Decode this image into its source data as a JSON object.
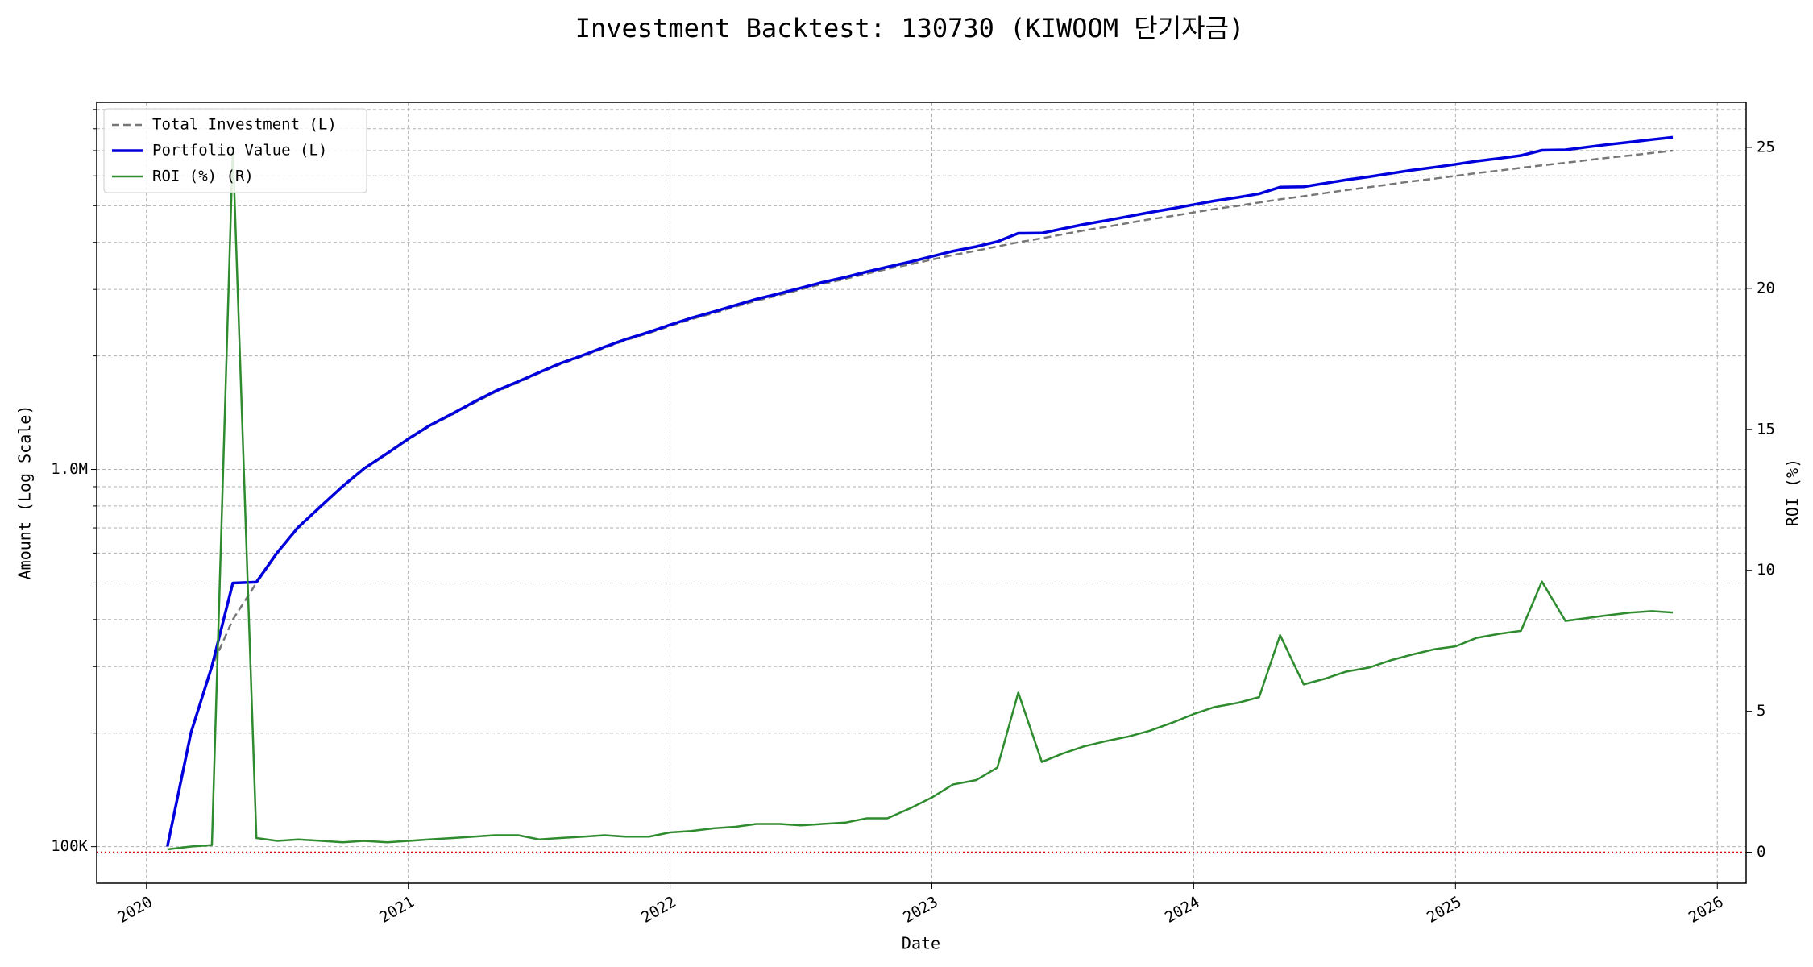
{
  "chart_data": {
    "type": "line",
    "title": "Investment Backtest: 130730 (KIWOOM 단기자금)",
    "xlabel": "Date",
    "ylabel": "Amount (Log Scale)",
    "y2label": "ROI (%)",
    "x": [
      2020.08,
      2020.17,
      2020.25,
      2020.33,
      2020.42,
      2020.5,
      2020.58,
      2020.67,
      2020.75,
      2020.83,
      2020.92,
      2021.0,
      2021.08,
      2021.17,
      2021.25,
      2021.33,
      2021.42,
      2021.5,
      2021.58,
      2021.67,
      2021.75,
      2021.83,
      2021.92,
      2022.0,
      2022.08,
      2022.17,
      2022.25,
      2022.33,
      2022.42,
      2022.5,
      2022.58,
      2022.67,
      2022.75,
      2022.83,
      2022.92,
      2023.0,
      2023.08,
      2023.17,
      2023.25,
      2023.33,
      2023.42,
      2023.5,
      2023.58,
      2023.67,
      2023.75,
      2023.83,
      2023.92,
      2024.0,
      2024.08,
      2024.17,
      2024.25,
      2024.33,
      2024.42,
      2024.5,
      2024.58,
      2024.67,
      2024.75,
      2024.83,
      2024.92,
      2025.0,
      2025.08,
      2025.17,
      2025.25,
      2025.33,
      2025.42,
      2025.5,
      2025.58,
      2025.67,
      2025.75,
      2025.83
    ],
    "series": [
      {
        "name": "Total Investment (L)",
        "color": "#777777",
        "dash": true,
        "axis": "y",
        "values": [
          100000,
          200000,
          300000,
          400000,
          500000,
          600000,
          700000,
          800000,
          900000,
          1000000,
          1100000,
          1200000,
          1300000,
          1400000,
          1500000,
          1600000,
          1700000,
          1800000,
          1900000,
          2000000,
          2100000,
          2200000,
          2300000,
          2400000,
          2500000,
          2600000,
          2700000,
          2800000,
          2900000,
          3000000,
          3100000,
          3200000,
          3300000,
          3400000,
          3500000,
          3600000,
          3700000,
          3800000,
          3900000,
          4000000,
          4100000,
          4200000,
          4300000,
          4400000,
          4500000,
          4600000,
          4700000,
          4800000,
          4900000,
          5000000,
          5100000,
          5200000,
          5300000,
          5400000,
          5500000,
          5600000,
          5700000,
          5800000,
          5900000,
          6000000,
          6100000,
          6200000,
          6300000,
          6400000,
          6500000,
          6600000,
          6700000,
          6800000,
          6900000,
          7000000
        ]
      },
      {
        "name": "Portfolio Value (L)",
        "color": "#0000dd",
        "dash": false,
        "axis": "y",
        "values": [
          100100,
          200400,
          300750,
          500000,
          502500,
          602400,
          703150,
          803200,
          903150,
          1004000,
          1103850,
          1204800,
          1305850,
          1407000,
          1508250,
          1609600,
          1710200,
          1808100,
          1909500,
          2011000,
          2112600,
          2212100,
          2312650,
          2416800,
          2518750,
          2622100,
          2724300,
          2828000,
          2929000,
          3028500,
          3131000,
          3233600,
          3339600,
          3440800,
          3554950,
          3669840,
          3788800,
          3897280,
          4017000,
          4226400,
          4231200,
          4347000,
          4461250,
          4573800,
          4684500,
          4797800,
          4916200,
          5035200,
          5152350,
          5265000,
          5380500,
          5600400,
          5615350,
          5732100,
          5852000,
          5966800,
          6087600,
          6206000,
          6324800,
          6438000,
          6563600,
          6680500,
          6794550,
          7014400,
          7033000,
          7147800,
          7262800,
          7378000,
          7489950,
          7595000
        ]
      },
      {
        "name": "ROI (%) (R)",
        "color": "#2e8b2e",
        "dash": false,
        "axis": "y2",
        "values": [
          0.1,
          0.2,
          0.25,
          25.0,
          0.5,
          0.4,
          0.45,
          0.4,
          0.35,
          0.4,
          0.35,
          0.4,
          0.45,
          0.5,
          0.55,
          0.6,
          0.6,
          0.45,
          0.5,
          0.55,
          0.6,
          0.55,
          0.55,
          0.7,
          0.75,
          0.85,
          0.9,
          1.0,
          1.0,
          0.95,
          1.0,
          1.05,
          1.2,
          1.2,
          1.57,
          1.94,
          2.4,
          2.56,
          3.0,
          5.66,
          3.2,
          3.5,
          3.75,
          3.95,
          4.1,
          4.3,
          4.6,
          4.9,
          5.15,
          5.3,
          5.5,
          7.7,
          5.95,
          6.15,
          6.4,
          6.55,
          6.8,
          7.0,
          7.2,
          7.3,
          7.6,
          7.75,
          7.85,
          9.6,
          8.2,
          8.3,
          8.4,
          8.5,
          8.55,
          8.5
        ]
      }
    ],
    "xlim": [
      2019.81,
      2026.11
    ],
    "xticks": [
      2020,
      2021,
      2022,
      2023,
      2024,
      2025,
      2026
    ],
    "ylog": true,
    "ylim": [
      80000,
      9400000
    ],
    "yticks": [
      {
        "value": 100000,
        "label": "100K"
      },
      {
        "value": 1000000,
        "label": "1.0M"
      }
    ],
    "yminorticks": [
      200000,
      300000,
      400000,
      500000,
      600000,
      700000,
      800000,
      900000,
      2000000,
      3000000,
      4000000,
      5000000,
      6000000,
      7000000,
      8000000,
      9000000
    ],
    "y2lim": [
      -1.1,
      26.6
    ],
    "y2ticks": [
      0,
      5,
      10,
      15,
      20,
      25
    ],
    "reference_line": {
      "value": 0,
      "axis": "y2",
      "color": "#dd0000"
    },
    "ycolor": "#0000cc",
    "y2color": "#228b22",
    "grid": true,
    "legend": "upper left"
  }
}
